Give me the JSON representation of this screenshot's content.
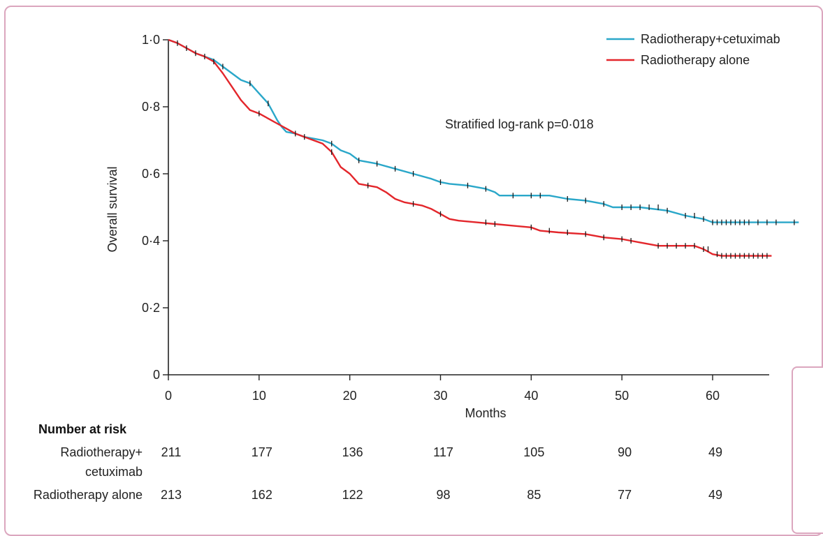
{
  "chart_data": {
    "type": "line",
    "subtype": "kaplan-meier",
    "title": "",
    "xlabel": "Months",
    "ylabel": "Overall survival",
    "xlim": [
      0,
      66
    ],
    "ylim": [
      0,
      1
    ],
    "x_ticks": [
      0,
      10,
      20,
      30,
      40,
      50,
      60
    ],
    "x_tick_labels": [
      "0",
      "10",
      "20",
      "30",
      "40",
      "50",
      "60"
    ],
    "y_ticks": [
      0,
      0.2,
      0.4,
      0.6,
      0.8,
      1.0
    ],
    "y_tick_labels": [
      "0",
      "0·2",
      "0·4",
      "0·6",
      "0·8",
      "1·0"
    ],
    "grid": false,
    "legend_position": "top-right",
    "annotation": "Stratified log-rank p=0·018",
    "series": [
      {
        "name": "Radiotherapy+cetuximab",
        "color": "#2aa7c9",
        "points": [
          [
            0,
            1.0
          ],
          [
            1,
            0.99
          ],
          [
            2,
            0.975
          ],
          [
            3,
            0.96
          ],
          [
            4,
            0.95
          ],
          [
            5,
            0.94
          ],
          [
            6,
            0.92
          ],
          [
            7,
            0.9
          ],
          [
            8,
            0.88
          ],
          [
            9,
            0.87
          ],
          [
            10,
            0.84
          ],
          [
            11,
            0.81
          ],
          [
            12,
            0.76
          ],
          [
            12.5,
            0.74
          ],
          [
            13,
            0.725
          ],
          [
            14,
            0.72
          ],
          [
            15,
            0.71
          ],
          [
            16,
            0.705
          ],
          [
            17,
            0.7
          ],
          [
            18,
            0.69
          ],
          [
            19,
            0.67
          ],
          [
            20,
            0.66
          ],
          [
            21,
            0.64
          ],
          [
            23,
            0.63
          ],
          [
            25,
            0.615
          ],
          [
            27,
            0.6
          ],
          [
            29,
            0.585
          ],
          [
            30,
            0.575
          ],
          [
            31,
            0.57
          ],
          [
            33,
            0.565
          ],
          [
            35,
            0.555
          ],
          [
            36,
            0.545
          ],
          [
            36.5,
            0.535
          ],
          [
            38,
            0.535
          ],
          [
            40,
            0.535
          ],
          [
            42,
            0.535
          ],
          [
            44,
            0.525
          ],
          [
            46,
            0.52
          ],
          [
            48,
            0.51
          ],
          [
            49,
            0.5
          ],
          [
            52,
            0.5
          ],
          [
            55,
            0.49
          ],
          [
            57,
            0.475
          ],
          [
            59,
            0.465
          ],
          [
            60,
            0.455
          ],
          [
            63,
            0.455
          ],
          [
            69.5,
            0.455
          ]
        ],
        "censor_x": [
          1,
          3,
          4,
          6,
          9,
          11,
          15,
          18,
          21,
          23,
          25,
          27,
          30,
          33,
          35,
          38,
          40,
          41,
          44,
          46,
          48,
          50,
          51,
          52,
          53,
          54,
          55,
          57,
          58,
          59,
          60,
          60.5,
          61,
          61.5,
          62,
          62.5,
          63,
          63.5,
          64,
          65,
          66,
          67,
          69
        ]
      },
      {
        "name": "Radiotherapy alone",
        "color": "#e3262b",
        "points": [
          [
            0,
            1.0
          ],
          [
            1,
            0.99
          ],
          [
            2,
            0.975
          ],
          [
            3,
            0.96
          ],
          [
            4,
            0.95
          ],
          [
            5,
            0.935
          ],
          [
            6,
            0.9
          ],
          [
            7,
            0.86
          ],
          [
            8,
            0.82
          ],
          [
            9,
            0.79
          ],
          [
            10,
            0.78
          ],
          [
            11,
            0.765
          ],
          [
            12,
            0.75
          ],
          [
            13,
            0.735
          ],
          [
            14,
            0.72
          ],
          [
            15,
            0.71
          ],
          [
            16,
            0.7
          ],
          [
            17,
            0.69
          ],
          [
            18,
            0.665
          ],
          [
            19,
            0.62
          ],
          [
            20,
            0.6
          ],
          [
            21,
            0.57
          ],
          [
            22,
            0.565
          ],
          [
            23,
            0.56
          ],
          [
            24,
            0.545
          ],
          [
            25,
            0.525
          ],
          [
            26,
            0.515
          ],
          [
            27,
            0.51
          ],
          [
            28,
            0.505
          ],
          [
            29,
            0.495
          ],
          [
            30,
            0.48
          ],
          [
            31,
            0.465
          ],
          [
            32,
            0.46
          ],
          [
            34,
            0.455
          ],
          [
            36,
            0.45
          ],
          [
            38,
            0.445
          ],
          [
            40,
            0.44
          ],
          [
            41,
            0.43
          ],
          [
            43,
            0.425
          ],
          [
            46,
            0.42
          ],
          [
            47,
            0.415
          ],
          [
            48,
            0.41
          ],
          [
            50,
            0.405
          ],
          [
            51,
            0.4
          ],
          [
            52,
            0.395
          ],
          [
            53,
            0.39
          ],
          [
            54,
            0.385
          ],
          [
            56,
            0.385
          ],
          [
            58,
            0.385
          ],
          [
            59,
            0.375
          ],
          [
            60,
            0.36
          ],
          [
            61,
            0.355
          ],
          [
            63,
            0.355
          ],
          [
            66.5,
            0.355
          ]
        ],
        "censor_x": [
          2,
          5,
          10,
          14,
          18,
          22,
          27,
          30,
          35,
          36,
          40,
          42,
          44,
          46,
          48,
          50,
          51,
          54,
          55,
          56,
          57,
          58,
          59,
          59.5,
          60.5,
          61,
          61.5,
          62,
          62.5,
          63,
          63.5,
          64,
          64.5,
          65,
          65.5,
          66
        ]
      }
    ],
    "risk_table": {
      "title": "Number at risk",
      "rows": [
        {
          "label_lines": [
            "Radiotherapy+",
            "cetuximab"
          ],
          "values": [
            "211",
            "177",
            "136",
            "117",
            "105",
            "90",
            "49"
          ]
        },
        {
          "label_lines": [
            "Radiotherapy alone"
          ],
          "values": [
            "213",
            "162",
            "122",
            "98",
            "85",
            "77",
            "49"
          ]
        }
      ]
    }
  }
}
